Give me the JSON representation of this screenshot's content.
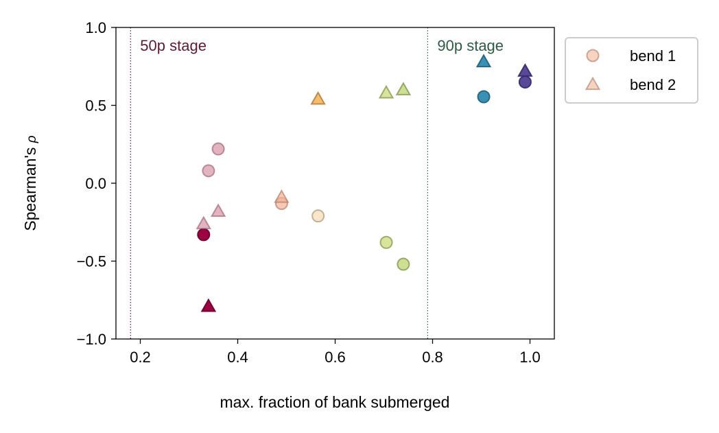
{
  "chart_data": {
    "type": "scatter",
    "xlabel": "max. fraction of bank submerged",
    "ylabel": "Spearman's",
    "ylabel_symbol": "ρ",
    "xlim": [
      0.15,
      1.05
    ],
    "ylim": [
      -1.0,
      1.0
    ],
    "xticks": [
      0.2,
      0.4,
      0.6,
      0.8,
      1.0
    ],
    "xtick_labels": [
      "0.2",
      "0.4",
      "0.6",
      "0.8",
      "1.0"
    ],
    "yticks": [
      1.0,
      0.5,
      0.0,
      -0.5,
      -1.0
    ],
    "ytick_labels": [
      "1.0",
      "0.5",
      "0.0",
      "−0.5",
      "−1.0"
    ],
    "grid": false,
    "reference_lines": [
      {
        "x": 0.18,
        "label": "50p stage",
        "color": "#5c1a33",
        "style": "dotted"
      },
      {
        "x": 0.79,
        "label": "90p stage",
        "color": "#2e5a45",
        "style": "dotted"
      }
    ],
    "legend": {
      "placement": "outside-top-right",
      "entries": [
        {
          "label": "bend 1",
          "marker": "circle",
          "color": "#f6c1a6"
        },
        {
          "label": "bend 2",
          "marker": "triangle",
          "color": "#f6c1a6"
        }
      ]
    },
    "series": [
      {
        "name": "bend 1",
        "marker": "circle",
        "points": [
          {
            "x": 0.33,
            "y": -0.33,
            "color": "#9e0142",
            "alpha": 1.0
          },
          {
            "x": 0.34,
            "y": 0.08,
            "color": "#d893a8",
            "alpha": 0.7
          },
          {
            "x": 0.36,
            "y": 0.22,
            "color": "#d893a8",
            "alpha": 0.7
          },
          {
            "x": 0.49,
            "y": -0.13,
            "color": "#f4b195",
            "alpha": 0.7
          },
          {
            "x": 0.565,
            "y": -0.21,
            "color": "#f7dfbb",
            "alpha": 0.8
          },
          {
            "x": 0.705,
            "y": -0.38,
            "color": "#d3e18e",
            "alpha": 0.9
          },
          {
            "x": 0.74,
            "y": -0.52,
            "color": "#c6dc86",
            "alpha": 0.9
          },
          {
            "x": 0.905,
            "y": 0.555,
            "color": "#2f8bb0",
            "alpha": 0.95
          },
          {
            "x": 0.99,
            "y": 0.65,
            "color": "#4f3f94",
            "alpha": 0.95
          }
        ]
      },
      {
        "name": "bend 2",
        "marker": "triangle",
        "points": [
          {
            "x": 0.34,
            "y": -0.79,
            "color": "#9e0142",
            "alpha": 1.0
          },
          {
            "x": 0.33,
            "y": -0.26,
            "color": "#d893a8",
            "alpha": 0.7
          },
          {
            "x": 0.36,
            "y": -0.18,
            "color": "#d893a8",
            "alpha": 0.7
          },
          {
            "x": 0.49,
            "y": -0.09,
            "color": "#f4b195",
            "alpha": 0.7
          },
          {
            "x": 0.565,
            "y": 0.54,
            "color": "#f6b65c",
            "alpha": 0.9
          },
          {
            "x": 0.705,
            "y": 0.58,
            "color": "#d3e18e",
            "alpha": 0.9
          },
          {
            "x": 0.74,
            "y": 0.6,
            "color": "#c6dc86",
            "alpha": 0.9
          },
          {
            "x": 0.905,
            "y": 0.78,
            "color": "#2f8bb0",
            "alpha": 0.95
          },
          {
            "x": 0.99,
            "y": 0.72,
            "color": "#4f3f94",
            "alpha": 0.95
          }
        ]
      }
    ]
  }
}
